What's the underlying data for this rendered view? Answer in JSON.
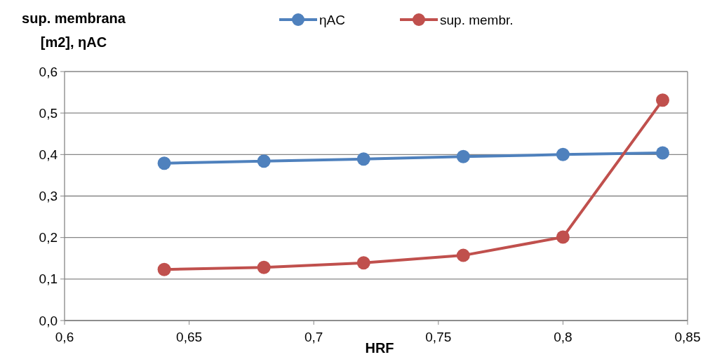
{
  "chart_data": {
    "type": "line",
    "ylabel": "sup. membrana [m2], ηAC",
    "xlabel": "HRF",
    "x": [
      0.64,
      0.68,
      0.72,
      0.76,
      0.8,
      0.84
    ],
    "series": [
      {
        "name": "ηAC",
        "color": "#4f81bd",
        "values": [
          0.379,
          0.384,
          0.389,
          0.395,
          0.4,
          0.404
        ]
      },
      {
        "name": "sup. membr.",
        "color": "#c0504d",
        "values": [
          0.123,
          0.128,
          0.139,
          0.157,
          0.201,
          0.531
        ]
      }
    ],
    "xlim": [
      0.6,
      0.85
    ],
    "xticks": [
      {
        "value": 0.6,
        "label": "0,6"
      },
      {
        "value": 0.65,
        "label": "0,65"
      },
      {
        "value": 0.7,
        "label": "0,7"
      },
      {
        "value": 0.75,
        "label": "0,75"
      },
      {
        "value": 0.8,
        "label": "0,8"
      },
      {
        "value": 0.85,
        "label": "0,85"
      }
    ],
    "ylim": [
      0,
      0.6
    ],
    "yticks": [
      {
        "value": 0,
        "label": "0,0"
      },
      {
        "value": 0.1,
        "label": "0,1"
      },
      {
        "value": 0.2,
        "label": "0,2"
      },
      {
        "value": 0.3,
        "label": "0,3"
      },
      {
        "value": 0.4,
        "label": "0,4"
      },
      {
        "value": 0.5,
        "label": "0,5"
      },
      {
        "value": 0.6,
        "label": "0,6"
      }
    ],
    "grid": "y",
    "legend": "top",
    "marker": "circle",
    "line_style": "solid"
  }
}
